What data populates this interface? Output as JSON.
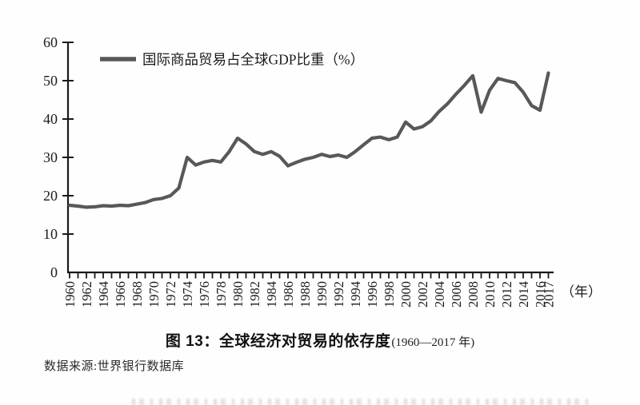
{
  "figure": {
    "title_main": "图 13：全球经济对贸易的依存度",
    "title_range": "(1960—2017 年)",
    "source": "数据来源:世界银行数据库"
  },
  "chart_data": {
    "type": "line",
    "legend": "国际商品贸易占全球GDP比重（%）",
    "x_unit_label": "（年）",
    "ylabel": "",
    "xlabel": "",
    "ylim": [
      0,
      60
    ],
    "yticks": [
      0,
      10,
      20,
      30,
      40,
      50,
      60
    ],
    "grid": false,
    "legend_position": "top-left",
    "line_color": "#57585a",
    "axis_color": "#1a1a1a",
    "x_tick_labels": [
      "1960",
      "1962",
      "1964",
      "1966",
      "1968",
      "1970",
      "1972",
      "1974",
      "1976",
      "1978",
      "1980",
      "1982",
      "1984",
      "1986",
      "1988",
      "1990",
      "1992",
      "1994",
      "1996",
      "1998",
      "2000",
      "2002",
      "2004",
      "2006",
      "2008",
      "2010",
      "2012",
      "2014",
      "2016",
      "2017"
    ],
    "years": [
      1960,
      1961,
      1962,
      1963,
      1964,
      1965,
      1966,
      1967,
      1968,
      1969,
      1970,
      1971,
      1972,
      1973,
      1974,
      1975,
      1976,
      1977,
      1978,
      1979,
      1980,
      1981,
      1982,
      1983,
      1984,
      1985,
      1986,
      1987,
      1988,
      1989,
      1990,
      1991,
      1992,
      1993,
      1994,
      1995,
      1996,
      1997,
      1998,
      1999,
      2000,
      2001,
      2002,
      2003,
      2004,
      2005,
      2006,
      2007,
      2008,
      2009,
      2010,
      2011,
      2012,
      2013,
      2014,
      2015,
      2016,
      2017
    ],
    "values": [
      17.5,
      17.3,
      17.0,
      17.1,
      17.4,
      17.3,
      17.5,
      17.4,
      17.8,
      18.2,
      19.0,
      19.3,
      20.0,
      22.0,
      30.0,
      28.0,
      28.8,
      29.2,
      28.8,
      31.5,
      35.0,
      33.5,
      31.5,
      30.8,
      31.5,
      30.3,
      27.8,
      28.7,
      29.5,
      30.0,
      30.8,
      30.2,
      30.6,
      30.0,
      31.5,
      33.3,
      35.0,
      35.3,
      34.6,
      35.3,
      39.2,
      37.4,
      38.0,
      39.5,
      42.0,
      44.0,
      46.5,
      48.8,
      51.3,
      41.8,
      47.5,
      50.6,
      50.0,
      49.5,
      47.0,
      43.5,
      42.3,
      52.0
    ]
  }
}
